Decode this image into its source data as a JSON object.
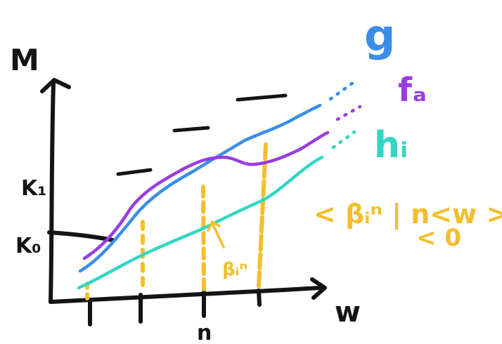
{
  "labels": {
    "y_axis": "M",
    "x_axis": "w",
    "k1": "K₁",
    "k0": "K₀",
    "n_tick": "n",
    "g": "g",
    "f": "fₐ",
    "h": "hᵢ",
    "beta_arrow": "βᵢⁿ",
    "bracket_line1": "< βᵢⁿ | n<w >",
    "bracket_line2": "< 0"
  },
  "colors": {
    "axis": "#141414",
    "g": "#3a8ee6",
    "f": "#9a3ce0",
    "h": "#33d6c4",
    "highlight": "#f4be2e"
  }
}
